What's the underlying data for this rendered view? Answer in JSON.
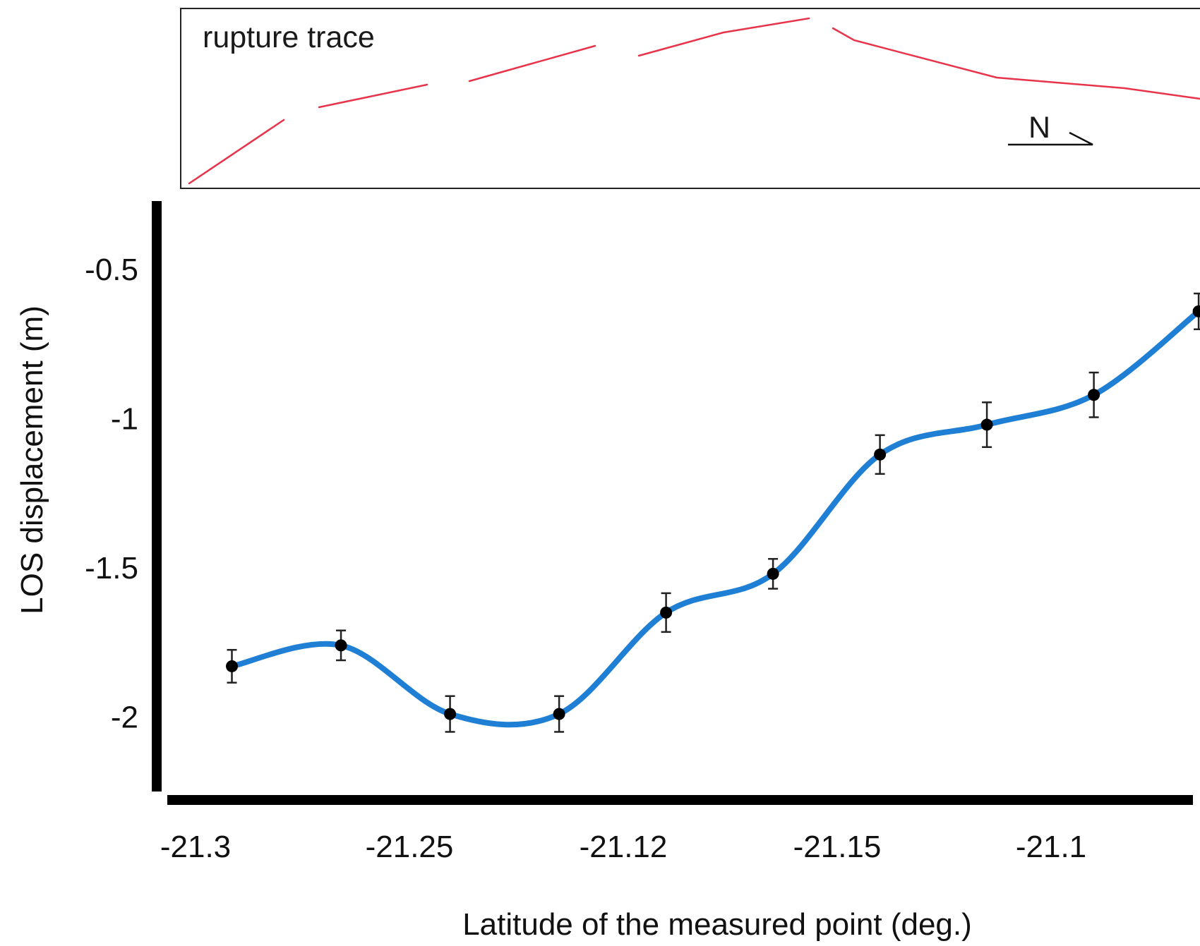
{
  "inset": {
    "label": "rupture trace",
    "north_label": "N",
    "trace_color": "#e8344a"
  },
  "chart_data": {
    "type": "line",
    "title": "",
    "xlabel": "Latitude of the measured point (deg.)",
    "ylabel": "LOS displacement (m)",
    "x_tick_labels": [
      "-21.3",
      "-21.25",
      "-21.12",
      "-21.15",
      "-21.1"
    ],
    "y_ticks": [
      -0.5,
      -1,
      -1.5,
      -2
    ],
    "y_tick_labels": [
      "-0.5",
      "-1",
      "-1.5",
      "-2"
    ],
    "ylim": [
      -2.25,
      -0.27
    ],
    "grid": false,
    "line_color": "#1e7fd4",
    "marker_color": "#000000",
    "series": [
      {
        "x_position_index": [
          0.17,
          0.68,
          1.19,
          1.7,
          2.2,
          2.7,
          3.2,
          3.7,
          4.2,
          4.69
        ],
        "values": [
          -1.83,
          -1.76,
          -1.99,
          -1.99,
          -1.65,
          -1.52,
          -1.12,
          -1.02,
          -0.92,
          -0.64
        ],
        "error": [
          0.055,
          0.05,
          0.06,
          0.06,
          0.065,
          0.05,
          0.065,
          0.075,
          0.075,
          0.06
        ]
      }
    ]
  }
}
